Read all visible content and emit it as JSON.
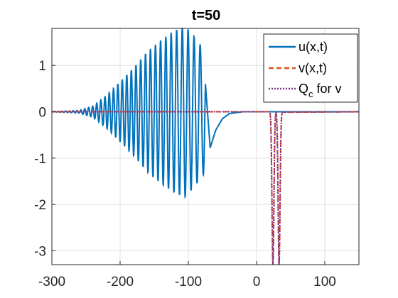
{
  "chart_data": {
    "type": "line",
    "title": "t=50",
    "xlabel": "",
    "ylabel": "",
    "xlim": [
      -300,
      150
    ],
    "ylim": [
      -3.3,
      1.8
    ],
    "xticks": [
      -300,
      -200,
      -100,
      0,
      100
    ],
    "xtick_labels": [
      "-300",
      "-200",
      "-100",
      "0",
      "100"
    ],
    "yticks": [
      1,
      0,
      -1,
      -2,
      -3
    ],
    "ytick_labels": [
      "1",
      "0",
      "-1",
      "-2",
      "-3"
    ],
    "grid": true,
    "legend_position": "top-right",
    "series": [
      {
        "name": "u(x,t)",
        "style": "solid",
        "color": "#0072BD",
        "description": "oscillatory wavepacket",
        "envelope_points": [
          {
            "x": -300,
            "amp": 0.0
          },
          {
            "x": -260,
            "amp": 0.03
          },
          {
            "x": -240,
            "amp": 0.12
          },
          {
            "x": -220,
            "amp": 0.35
          },
          {
            "x": -200,
            "amp": 0.65
          },
          {
            "x": -180,
            "amp": 0.95
          },
          {
            "x": -160,
            "amp": 1.3
          },
          {
            "x": -140,
            "amp": 1.55
          },
          {
            "x": -120,
            "amp": 1.75
          },
          {
            "x": -105,
            "amp": 1.85
          },
          {
            "x": -90,
            "amp": 1.6
          },
          {
            "x": -75,
            "amp": 1.3
          }
        ],
        "tail_points": [
          {
            "x": -68,
            "y": -0.78
          },
          {
            "x": -60,
            "y": -0.4
          },
          {
            "x": -50,
            "y": -0.15
          },
          {
            "x": -40,
            "y": -0.04
          },
          {
            "x": -20,
            "y": 0.0
          },
          {
            "x": 150,
            "y": 0.0
          }
        ]
      },
      {
        "name": "v(x,t)",
        "style": "dashed",
        "color": "#D95319",
        "values_description": "narrow negative spikes",
        "spikes": [
          {
            "center": 24,
            "depth": -3.3,
            "width": 5
          },
          {
            "center": 33,
            "depth": -3.3,
            "width": 5
          }
        ]
      },
      {
        "name": "Q_c for v",
        "legend_label_main": "Q",
        "legend_label_sub": "c",
        "legend_label_rest": " for v",
        "style": "dotted",
        "color": "#7E2F8E",
        "spikes": [
          {
            "center": 24,
            "depth": -3.3,
            "width": 5
          },
          {
            "center": 33,
            "depth": -3.3,
            "width": 5
          }
        ]
      }
    ]
  },
  "colors": {
    "axis": "#262626",
    "grid": "#dfdfdf",
    "background": "#ffffff"
  }
}
